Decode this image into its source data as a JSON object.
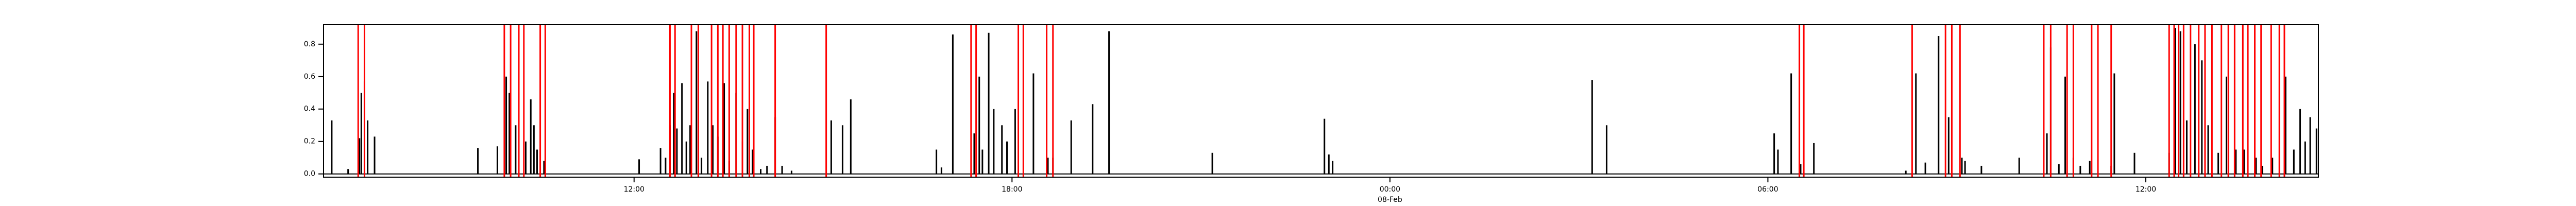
{
  "chart_data": {
    "type": "spike",
    "x": [
      7.2,
      7.46,
      7.64,
      7.67,
      7.72,
      7.77,
      7.88,
      9.52,
      9.83,
      9.97,
      10.02,
      10.12,
      10.17,
      10.28,
      10.36,
      10.41,
      10.46,
      10.57,
      12.08,
      12.42,
      12.5,
      12.57,
      12.63,
      12.68,
      12.76,
      12.83,
      12.89,
      12.99,
      13.07,
      13.17,
      13.25,
      13.33,
      13.43,
      13.51,
      13.62,
      13.72,
      13.8,
      13.88,
      14.01,
      14.11,
      14.24,
      14.35,
      14.5,
      15.13,
      15.31,
      15.44,
      16.8,
      16.88,
      17.06,
      17.4,
      17.48,
      17.53,
      17.63,
      17.71,
      17.84,
      17.92,
      18.05,
      18.34,
      18.57,
      18.65,
      18.94,
      19.28,
      19.54,
      21.18,
      22.96,
      23.03,
      23.09,
      27.21,
      27.44,
      30.1,
      30.16,
      30.37,
      30.52,
      30.73,
      32.19,
      32.35,
      32.5,
      32.71,
      32.87,
      33.08,
      33.13,
      33.39,
      33.99,
      34.43,
      34.49,
      34.62,
      34.72,
      34.85,
      34.96,
      35.11,
      35.45,
      35.5,
      35.82,
      36.37,
      36.47,
      36.55,
      36.65,
      36.78,
      36.89,
      36.99,
      37.15,
      37.28,
      37.43,
      37.56,
      37.75,
      37.85,
      38.01,
      38.22,
      38.35,
      38.45,
      38.53,
      38.61,
      38.71
    ],
    "values": [
      0.33,
      0.03,
      0.22,
      0.5,
      0.57,
      0.33,
      0.23,
      0.16,
      0.17,
      0.6,
      0.5,
      0.3,
      0.5,
      0.2,
      0.46,
      0.3,
      0.15,
      0.08,
      0.09,
      0.16,
      0.1,
      0.3,
      0.5,
      0.28,
      0.56,
      0.2,
      0.3,
      0.88,
      0.1,
      0.57,
      0.3,
      0.23,
      0.56,
      0.08,
      0.5,
      0.2,
      0.4,
      0.15,
      0.03,
      0.05,
      0.35,
      0.05,
      0.02,
      0.33,
      0.3,
      0.46,
      0.15,
      0.04,
      0.86,
      0.25,
      0.6,
      0.15,
      0.87,
      0.4,
      0.3,
      0.2,
      0.4,
      0.62,
      0.1,
      0.1,
      0.33,
      0.43,
      0.88,
      0.13,
      0.34,
      0.12,
      0.08,
      0.58,
      0.3,
      0.25,
      0.15,
      0.62,
      0.06,
      0.19,
      0.02,
      0.62,
      0.07,
      0.85,
      0.35,
      0.1,
      0.08,
      0.05,
      0.1,
      0.25,
      0.78,
      0.06,
      0.6,
      0.1,
      0.05,
      0.08,
      0.05,
      0.62,
      0.13,
      0.13,
      0.9,
      0.88,
      0.33,
      0.8,
      0.7,
      0.3,
      0.13,
      0.6,
      0.15,
      0.15,
      0.1,
      0.05,
      0.1,
      0.6,
      0.15,
      0.4,
      0.2,
      0.35,
      0.28
    ],
    "color": "#000000",
    "vlines": [
      7.62,
      7.72,
      9.94,
      10.04,
      10.17,
      10.25,
      10.51,
      10.59,
      12.57,
      12.65,
      12.91,
      13.02,
      13.23,
      13.33,
      13.41,
      13.51,
      13.62,
      13.72,
      13.83,
      13.9,
      14.24,
      15.05,
      17.35,
      17.43,
      18.1,
      18.18,
      18.55,
      18.65,
      30.5,
      30.57,
      32.29,
      32.82,
      32.92,
      33.05,
      34.38,
      34.49,
      34.75,
      34.85,
      35.14,
      35.24,
      35.45,
      36.37,
      36.45,
      36.52,
      36.6,
      36.71,
      36.84,
      36.94,
      37.05,
      37.2,
      37.31,
      37.41,
      37.54,
      37.62,
      37.73,
      37.83,
      37.99,
      38.12,
      38.2
    ],
    "vline_color": "#ff0000",
    "xlim": [
      7.07,
      38.74
    ],
    "xticks": [
      {
        "value": 12,
        "label": "12:00"
      },
      {
        "value": 18,
        "label": "18:00"
      },
      {
        "value": 24,
        "label": "00:00",
        "sublabel": "08-Feb"
      },
      {
        "value": 30,
        "label": "06:00"
      },
      {
        "value": 36,
        "label": "12:00"
      }
    ],
    "ylim": [
      -0.02,
      0.92
    ],
    "yticks": [
      {
        "value": 0,
        "label": "0.0"
      },
      0.2,
      0.4,
      0.6,
      0.8
    ]
  }
}
